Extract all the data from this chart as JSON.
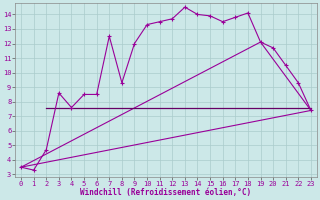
{
  "xlabel": "Windchill (Refroidissement éolien,°C)",
  "bg_color": "#cce8e8",
  "line_color": "#990099",
  "xlim": [
    -0.5,
    23.5
  ],
  "ylim": [
    2.8,
    14.8
  ],
  "yticks": [
    3,
    4,
    5,
    6,
    7,
    8,
    9,
    10,
    11,
    12,
    13,
    14
  ],
  "xticks": [
    0,
    1,
    2,
    3,
    4,
    5,
    6,
    7,
    8,
    9,
    10,
    11,
    12,
    13,
    14,
    15,
    16,
    17,
    18,
    19,
    20,
    21,
    22,
    23
  ],
  "series1_x": [
    0,
    1,
    2,
    3,
    4,
    5,
    6,
    7,
    8,
    9,
    10,
    11,
    12,
    13,
    14,
    15,
    16,
    17,
    18,
    19,
    20,
    21,
    22,
    23
  ],
  "series1_y": [
    3.5,
    3.3,
    4.7,
    8.6,
    7.6,
    8.5,
    8.5,
    12.5,
    9.3,
    12.0,
    13.3,
    13.5,
    13.7,
    14.5,
    14.0,
    13.9,
    13.5,
    13.8,
    14.1,
    12.1,
    11.7,
    10.5,
    9.3,
    7.4
  ],
  "series2_x": [
    2,
    3,
    22,
    23
  ],
  "series2_y": [
    7.6,
    7.6,
    7.6,
    7.6
  ],
  "series3_x": [
    0,
    23
  ],
  "series3_y": [
    3.5,
    7.4
  ],
  "series4_x": [
    0,
    19,
    23
  ],
  "series4_y": [
    3.5,
    12.1,
    7.4
  ]
}
